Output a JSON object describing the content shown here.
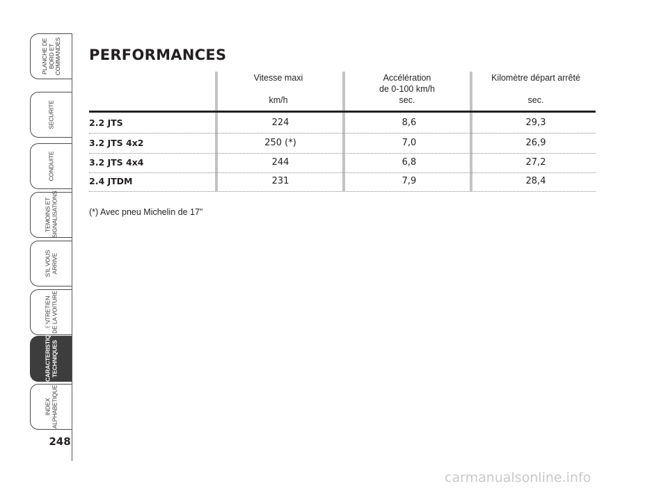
{
  "sidebar": {
    "tabs": [
      {
        "label": "PLANCHE DE\nBORD ET\nCOMMANDES",
        "active": false
      },
      {
        "label": "SECURITE",
        "active": false
      },
      {
        "label": "CONDUITE",
        "active": false
      },
      {
        "label": "TEMOINS ET\nSIGNALISATIONS",
        "active": false
      },
      {
        "label": "S'IL VOUS\nARRIVE",
        "active": false
      },
      {
        "label": "ENTRETIEN\nDE LA VOITURE",
        "active": false
      },
      {
        "label": "CARACTERISTIQUES\nTECHNIQUES",
        "active": true
      },
      {
        "label": "INDEX\nALPHABETIQUE",
        "active": false
      }
    ],
    "page_number": "248"
  },
  "title": "PERFORMANCES",
  "table": {
    "headers": [
      {
        "line1": "Vitesse maxi",
        "line2": "",
        "unit": "km/h"
      },
      {
        "line1": "Accélération",
        "line2": "de 0-100 km/h",
        "unit": "sec."
      },
      {
        "line1": "Kilomètre départ arrêté",
        "line2": "",
        "unit": "sec."
      }
    ],
    "rows": [
      {
        "model": "2.2 JTS",
        "v1": "224",
        "v2": "8,6",
        "v3": "29,3"
      },
      {
        "model": "3.2 JTS 4x2",
        "v1": "250 (*)",
        "v2": "7,0",
        "v3": "26,9"
      },
      {
        "model": "3.2 JTS 4x4",
        "v1": "244",
        "v2": "6,8",
        "v3": "27,2"
      },
      {
        "model": "2.4 JTDM",
        "v1": "231",
        "v2": "7,9",
        "v3": "28,4"
      }
    ]
  },
  "footnote": "(*) Avec pneu Michelin de 17\"",
  "watermark": "carmanualsonline.info"
}
